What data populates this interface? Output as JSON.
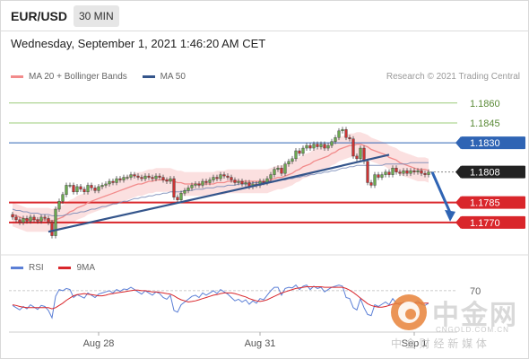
{
  "header": {
    "symbol": "EUR/USD",
    "timeframe": "30 MIN",
    "datetime": "Wednesday, September 1, 2021 1:46:20 AM CET",
    "credit": "Research © 2021 Trading Central"
  },
  "legend": {
    "ma20": "MA 20 + Bollinger Bands",
    "ma50": "MA 50",
    "ma20_color": "#f28b8b",
    "ma50_color": "#34558b"
  },
  "indicator_legend": {
    "rsi": "RSI",
    "ma9": "9MA",
    "rsi_color": "#5b7fd6",
    "ma9_color": "#d9262b"
  },
  "watermark": {
    "brand": "中金网",
    "domain": "CNGOLD.COM.CN",
    "tagline": "中 金 财 经 新 媒 体"
  },
  "chart_data": [
    {
      "type": "candlestick",
      "ylim": [
        1.1755,
        1.187
      ],
      "x_ticks": [
        "Aug 28",
        "Aug 31",
        "Sep 1"
      ],
      "levels": [
        {
          "label": "1.1860",
          "value": 1.186,
          "color": "#9ccc7a",
          "kind": "resistance"
        },
        {
          "label": "1.1845",
          "value": 1.1845,
          "color": "#9ccc7a",
          "kind": "resistance"
        },
        {
          "label": "1.1830",
          "value": 1.183,
          "color": "#2f64b4",
          "kind": "pivot"
        },
        {
          "label": "1.1808",
          "value": 1.1808,
          "color": "#222222",
          "kind": "last-price"
        },
        {
          "label": "1.1785",
          "value": 1.1785,
          "color": "#d9262b",
          "kind": "support"
        },
        {
          "label": "1.1770",
          "value": 1.177,
          "color": "#d9262b",
          "kind": "support"
        }
      ],
      "close": [
        1.1774,
        1.1772,
        1.177,
        1.1773,
        1.1771,
        1.1774,
        1.1772,
        1.1771,
        1.1774,
        1.1773,
        1.177,
        1.176,
        1.178,
        1.1786,
        1.1791,
        1.1798,
        1.1798,
        1.1793,
        1.1797,
        1.1795,
        1.1793,
        1.1798,
        1.1796,
        1.1794,
        1.1797,
        1.1798,
        1.1799,
        1.1801,
        1.18,
        1.1803,
        1.1802,
        1.1804,
        1.1804,
        1.1806,
        1.1805,
        1.1804,
        1.1803,
        1.1805,
        1.1804,
        1.1803,
        1.1805,
        1.1804,
        1.1802,
        1.1801,
        1.1803,
        1.1789,
        1.1787,
        1.1792,
        1.1794,
        1.1796,
        1.1798,
        1.1799,
        1.1798,
        1.1801,
        1.18,
        1.1802,
        1.1804,
        1.1803,
        1.1806,
        1.1805,
        1.1804,
        1.1802,
        1.18,
        1.1801,
        1.1799,
        1.18,
        1.1797,
        1.1799,
        1.1798,
        1.1801,
        1.18,
        1.1803,
        1.1806,
        1.181,
        1.1811,
        1.1807,
        1.1814,
        1.1816,
        1.1818,
        1.1824,
        1.1822,
        1.1826,
        1.1828,
        1.1826,
        1.1829,
        1.1827,
        1.1829,
        1.1826,
        1.1828,
        1.1831,
        1.1834,
        1.1839,
        1.184,
        1.1834,
        1.1833,
        1.182,
        1.1818,
        1.1826,
        1.1816,
        1.18,
        1.1798,
        1.1806,
        1.1804,
        1.1806,
        1.1808,
        1.1806,
        1.1811,
        1.1808,
        1.1807,
        1.1809,
        1.1807,
        1.1809,
        1.1808,
        1.1809,
        1.1807,
        1.1806,
        1.1808
      ],
      "ma20": [
        1.1776,
        1.1775,
        1.1774,
        1.1773,
        1.1772,
        1.1772,
        1.1772,
        1.1772,
        1.1772,
        1.1772,
        1.1772,
        1.1771,
        1.1772,
        1.1773,
        1.1774,
        1.1776,
        1.1778,
        1.1779,
        1.1781,
        1.1782,
        1.1783,
        1.1785,
        1.1786,
        1.1787,
        1.1788,
        1.1789,
        1.179,
        1.1791,
        1.1792,
        1.1793,
        1.1794,
        1.1795,
        1.1796,
        1.1797,
        1.1798,
        1.1799,
        1.1799,
        1.18,
        1.1801,
        1.1801,
        1.1802,
        1.1802,
        1.1802,
        1.1802,
        1.1802,
        1.1801,
        1.18,
        1.18,
        1.1799,
        1.1799,
        1.1799,
        1.1799,
        1.1799,
        1.1799,
        1.1799,
        1.1799,
        1.1799,
        1.18,
        1.18,
        1.18,
        1.1801,
        1.1801,
        1.1801,
        1.1801,
        1.1801,
        1.1801,
        1.1801,
        1.1801,
        1.1801,
        1.1801,
        1.1801,
        1.1801,
        1.1802,
        1.1803,
        1.1804,
        1.1804,
        1.1805,
        1.1806,
        1.1807,
        1.1809,
        1.181,
        1.1812,
        1.1813,
        1.1814,
        1.1816,
        1.1817,
        1.1818,
        1.1819,
        1.182,
        1.1822,
        1.1823,
        1.1825,
        1.1826,
        1.1827,
        1.1828,
        1.1828,
        1.1829,
        1.1829,
        1.1828,
        1.1827,
        1.1825,
        1.1824,
        1.1823,
        1.1822,
        1.1821,
        1.1819,
        1.1818,
        1.1817,
        1.1815,
        1.1814,
        1.1813,
        1.1812,
        1.1811,
        1.181,
        1.181,
        1.181,
        1.1809
      ],
      "ma50": [
        1.178,
        1.1779,
        1.1779,
        1.1778,
        1.1778,
        1.1777,
        1.1777,
        1.1777,
        1.1776,
        1.1776,
        1.1776,
        1.1775,
        1.1775,
        1.1775,
        1.1775,
        1.1776,
        1.1776,
        1.1777,
        1.1777,
        1.1778,
        1.1778,
        1.1779,
        1.178,
        1.178,
        1.1781,
        1.1782,
        1.1782,
        1.1783,
        1.1784,
        1.1784,
        1.1785,
        1.1786,
        1.1786,
        1.1787,
        1.1788,
        1.1788,
        1.1789,
        1.1789,
        1.179,
        1.179,
        1.1791,
        1.1791,
        1.1792,
        1.1792,
        1.1793,
        1.1793,
        1.1793,
        1.1793,
        1.1794,
        1.1794,
        1.1794,
        1.1795,
        1.1795,
        1.1795,
        1.1796,
        1.1796,
        1.1796,
        1.1797,
        1.1797,
        1.1797,
        1.1798,
        1.1798,
        1.1798,
        1.1799,
        1.1799,
        1.1799,
        1.1799,
        1.18,
        1.18,
        1.18,
        1.18,
        1.1801,
        1.1801,
        1.1801,
        1.1802,
        1.1802,
        1.1802,
        1.1803,
        1.1803,
        1.1804,
        1.1804,
        1.1805,
        1.1805,
        1.1806,
        1.1806,
        1.1807,
        1.1807,
        1.1808,
        1.1808,
        1.1809,
        1.1809,
        1.181,
        1.1811,
        1.1811,
        1.1812,
        1.1812,
        1.1813,
        1.1813,
        1.1813,
        1.1813,
        1.1813,
        1.1813,
        1.1813,
        1.1813,
        1.1814,
        1.1814,
        1.1814,
        1.1814,
        1.1814,
        1.1814,
        1.1814,
        1.1815,
        1.1815,
        1.1815,
        1.1815,
        1.1815,
        1.1815
      ],
      "bb_width": 0.0009,
      "trendlines": [
        {
          "from": [
            10,
            1.1763
          ],
          "to": [
            73,
            1.1801
          ],
          "color": "#34558b"
        },
        {
          "from": [
            73,
            1.1801
          ],
          "to": [
            105,
            1.1821
          ],
          "color": "#34558b"
        }
      ],
      "forecast_arrow": {
        "from": [
          117,
          1.1808
        ],
        "to": [
          122,
          1.1772
        ],
        "color": "#2f64b4"
      }
    },
    {
      "type": "line",
      "title": "RSI",
      "ylim": [
        0,
        100
      ],
      "level_labels": [
        "70"
      ],
      "series": [
        {
          "name": "RSI",
          "color": "#5b7fd6",
          "values": [
            44,
            40,
            36,
            42,
            38,
            45,
            41,
            37,
            44,
            42,
            35,
            22,
            60,
            72,
            70,
            74,
            72,
            58,
            63,
            60,
            57,
            66,
            62,
            58,
            64,
            66,
            68,
            70,
            66,
            72,
            69,
            73,
            72,
            76,
            72,
            68,
            64,
            70,
            66,
            62,
            68,
            65,
            58,
            55,
            62,
            35,
            32,
            45,
            50,
            55,
            60,
            62,
            58,
            66,
            62,
            66,
            70,
            65,
            72,
            68,
            64,
            58,
            52,
            55,
            50,
            54,
            46,
            52,
            48,
            56,
            54,
            62,
            70,
            76,
            76,
            62,
            74,
            76,
            75,
            80,
            72,
            78,
            80,
            72,
            78,
            74,
            76,
            68,
            72,
            76,
            78,
            80,
            78,
            58,
            56,
            40,
            36,
            56,
            40,
            28,
            26,
            45,
            42,
            46,
            50,
            45,
            56,
            48,
            45,
            50,
            46,
            50,
            48,
            52,
            46,
            44,
            48
          ]
        },
        {
          "name": "9MA",
          "color": "#d9262b",
          "values": [
            45,
            44,
            42,
            41,
            40,
            40,
            40,
            40,
            40,
            40,
            40,
            38,
            40,
            44,
            48,
            53,
            57,
            61,
            63,
            64,
            65,
            64,
            63,
            62,
            61,
            61,
            62,
            64,
            65,
            66,
            67,
            68,
            69,
            70,
            71,
            71,
            70,
            70,
            69,
            68,
            68,
            67,
            66,
            65,
            64,
            61,
            57,
            54,
            52,
            50,
            51,
            52,
            54,
            56,
            58,
            60,
            62,
            63,
            65,
            66,
            66,
            66,
            65,
            63,
            61,
            59,
            56,
            54,
            52,
            51,
            52,
            54,
            57,
            60,
            63,
            66,
            68,
            70,
            72,
            74,
            75,
            76,
            77,
            77,
            77,
            77,
            77,
            76,
            76,
            76,
            76,
            76,
            76,
            74,
            71,
            67,
            62,
            57,
            52,
            47,
            44,
            42,
            41,
            41,
            42,
            44,
            46,
            47,
            48,
            48,
            48,
            48,
            48,
            48,
            48,
            48,
            48
          ]
        }
      ]
    }
  ]
}
